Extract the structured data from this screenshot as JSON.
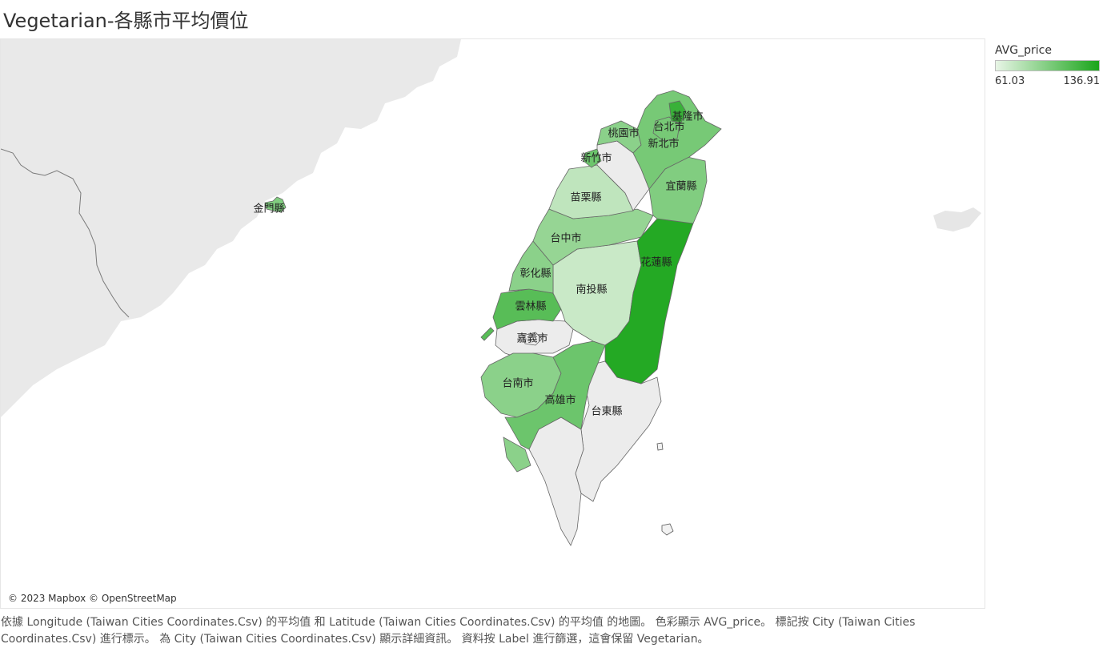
{
  "title": "Vegetarian-各縣市平均價位",
  "legend": {
    "title": "AVG_price",
    "min_label": "61.03",
    "max_label": "136.91",
    "min_color": "#e8f5e6",
    "max_color": "#1aa51a"
  },
  "attribution": "© 2023 Mapbox © OpenStreetMap",
  "caption": "依據 Longitude (Taiwan Cities Coordinates.Csv) 的平均值 和 Latitude (Taiwan Cities Coordinates.Csv) 的平均值 的地圖。 色彩顯示 AVG_price。 標記按 City (Taiwan Cities Coordinates.Csv) 進行標示。 為 City (Taiwan Cities Coordinates.Csv) 顯示詳細資訊。 資料按 Label 進行篩選，這會保留 Vegetarian。",
  "regions": [
    {
      "name": "基隆市",
      "level": 0.85
    },
    {
      "name": "台北市",
      "level": 0.55
    },
    {
      "name": "桃園市",
      "level": 0.45
    },
    {
      "name": "新北市",
      "level": 0.55
    },
    {
      "name": "新竹市",
      "level": 0.6
    },
    {
      "name": "宜蘭縣",
      "level": 0.5
    },
    {
      "name": "苗栗縣",
      "level": 0.2
    },
    {
      "name": "台中市",
      "level": 0.4
    },
    {
      "name": "花蓮縣",
      "level": 0.95
    },
    {
      "name": "彰化縣",
      "level": 0.45
    },
    {
      "name": "南投縣",
      "level": 0.15
    },
    {
      "name": "雲林縣",
      "level": 0.7
    },
    {
      "name": "嘉義市",
      "level": null
    },
    {
      "name": "台南市",
      "level": 0.45
    },
    {
      "name": "高雄市",
      "level": 0.6
    },
    {
      "name": "台東縣",
      "level": null
    },
    {
      "name": "金門縣",
      "level": 0.5
    }
  ],
  "no_data_color": "#ececec"
}
